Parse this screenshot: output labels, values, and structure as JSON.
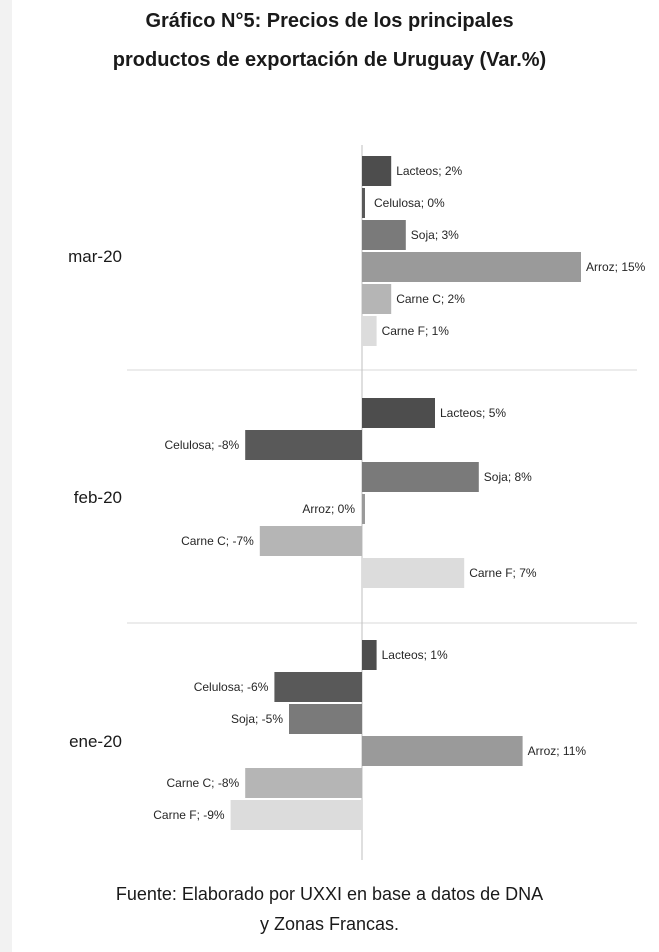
{
  "title_lines": [
    "Gráfico N°5: Precios de los principales",
    "productos de exportación de Uruguay (Var.%)"
  ],
  "source_lines": [
    "Fuente: Elaborado por UXXI en base a datos de DNA",
    "y Zonas Francas."
  ],
  "chart_data": {
    "type": "bar",
    "orientation": "horizontal",
    "title": "Gráfico N°5: Precios de los principales productos de exportación de Uruguay (Var.%)",
    "unit": "%",
    "groups": [
      {
        "label": "mar-20",
        "bars": [
          {
            "name": "Lacteos",
            "value": 2,
            "label": "Lacteos; 2%",
            "color": "#4d4d4d"
          },
          {
            "name": "Celulosa",
            "value": 0,
            "label": "Celulosa; 0%",
            "color": "#595959"
          },
          {
            "name": "Soja",
            "value": 3,
            "label": "Soja; 3%",
            "color": "#7a7a7a"
          },
          {
            "name": "Arroz",
            "value": 15,
            "label": "Arroz; 15%",
            "color": "#9a9a9a"
          },
          {
            "name": "Carne C",
            "value": 2,
            "label": "Carne C; 2%",
            "color": "#b5b5b5"
          },
          {
            "name": "Carne F",
            "value": 1,
            "label": "Carne F; 1%",
            "color": "#dcdcdc"
          }
        ]
      },
      {
        "label": "feb-20",
        "bars": [
          {
            "name": "Lacteos",
            "value": 5,
            "label": "Lacteos; 5%",
            "color": "#4d4d4d"
          },
          {
            "name": "Celulosa",
            "value": -8,
            "label": "Celulosa; -8%",
            "color": "#595959"
          },
          {
            "name": "Soja",
            "value": 8,
            "label": "Soja; 8%",
            "color": "#7a7a7a"
          },
          {
            "name": "Arroz",
            "value": 0,
            "label": "Arroz; 0%",
            "color": "#9a9a9a"
          },
          {
            "name": "Carne C",
            "value": -7,
            "label": "Carne C; -7%",
            "color": "#b5b5b5"
          },
          {
            "name": "Carne F",
            "value": 7,
            "label": "Carne F; 7%",
            "color": "#dcdcdc"
          }
        ]
      },
      {
        "label": "ene-20",
        "bars": [
          {
            "name": "Lacteos",
            "value": 1,
            "label": "Lacteos; 1%",
            "color": "#4d4d4d"
          },
          {
            "name": "Celulosa",
            "value": -6,
            "label": "Celulosa; -6%",
            "color": "#595959"
          },
          {
            "name": "Soja",
            "value": -5,
            "label": "Soja; -5%",
            "color": "#7a7a7a"
          },
          {
            "name": "Arroz",
            "value": 11,
            "label": "Arroz; 11%",
            "color": "#9a9a9a"
          },
          {
            "name": "Carne C",
            "value": -8,
            "label": "Carne C; -8%",
            "color": "#b5b5b5"
          },
          {
            "name": "Carne F",
            "value": -9,
            "label": "Carne F; -9%",
            "color": "#dcdcdc"
          }
        ]
      }
    ],
    "xlim": [
      -9,
      15
    ],
    "grid": false,
    "legend": "none"
  }
}
